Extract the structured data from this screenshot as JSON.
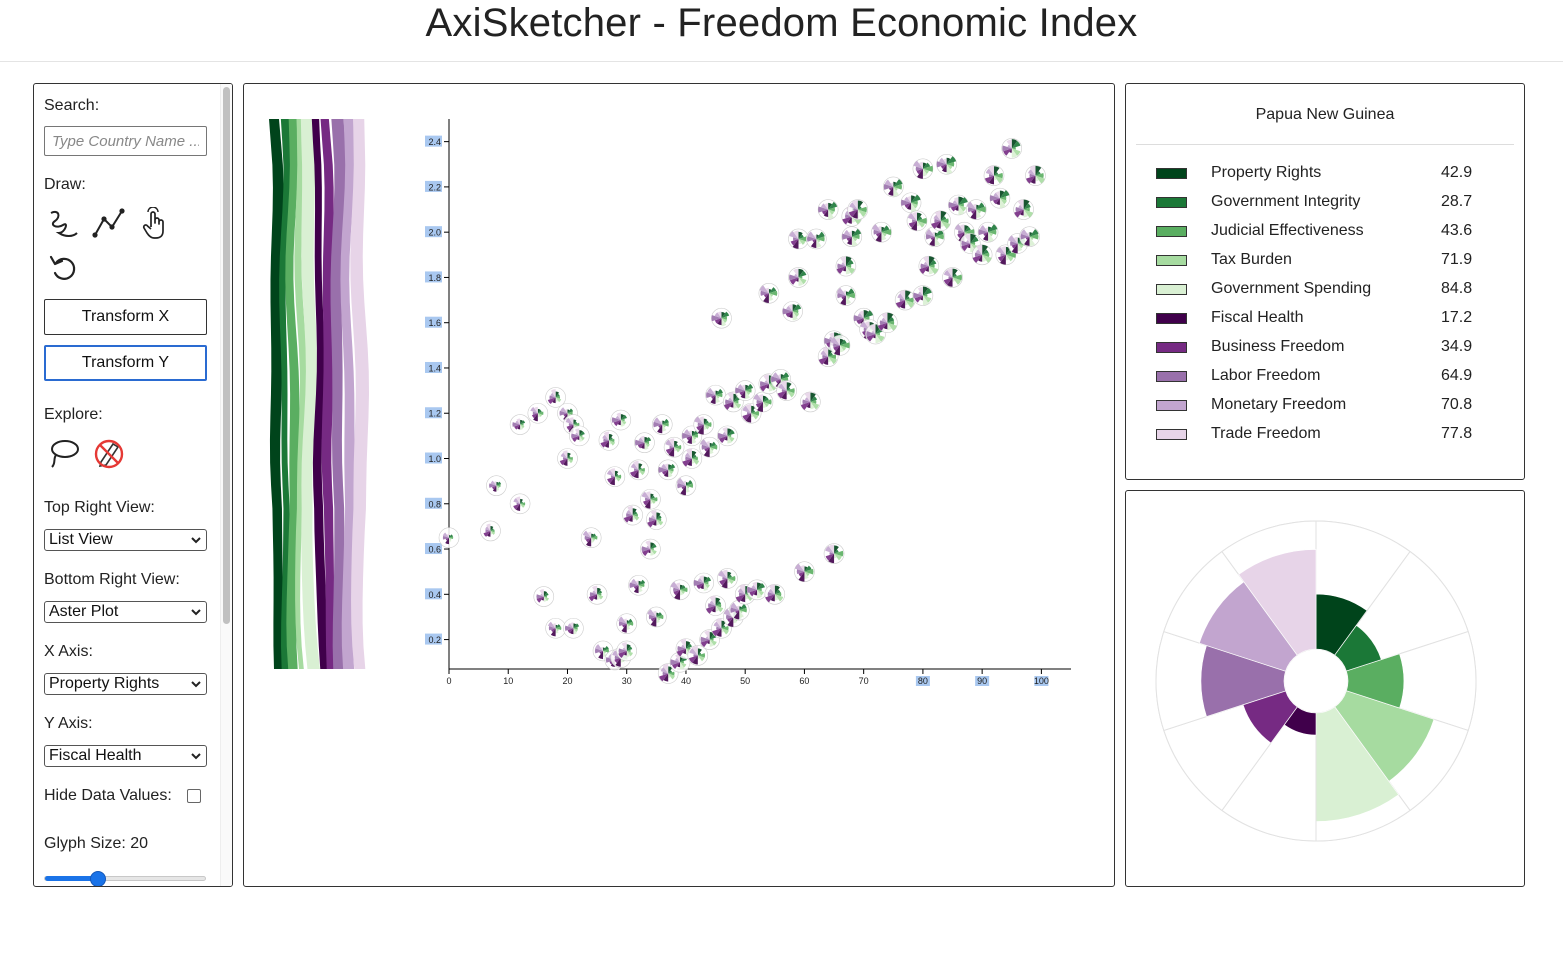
{
  "header": {
    "title": "AxiSketcher - Freedom Economic Index"
  },
  "sidebar": {
    "search_label": "Search:",
    "search_placeholder": "Type Country Name ...",
    "draw_label": "Draw:",
    "draw_tools": [
      "freehand-curve-icon",
      "polyline-icon",
      "pointer-hand-icon",
      "undo-icon"
    ],
    "transform_x": "Transform X",
    "transform_y": "Transform Y",
    "explore_label": "Explore:",
    "explore_tools": [
      "lasso-icon",
      "no-draw-icon"
    ],
    "top_right_view_label": "Top Right View:",
    "top_right_view_value": "List View",
    "bottom_right_view_label": "Bottom Right View:",
    "bottom_right_view_value": "Aster Plot",
    "x_axis_label": "X Axis:",
    "x_axis_value": "Property Rights",
    "y_axis_label": "Y Axis:",
    "y_axis_value": "Fiscal Health",
    "hide_values_label": "Hide Data Values:",
    "hide_values_checked": false,
    "glyph_size_label": "Glyph Size: 20",
    "glyph_size_value": 20,
    "glyph_size_fraction": 0.33
  },
  "colors": {
    "green_dark": "#00441b",
    "green_2": "#1b7837",
    "green_3": "#5aae61",
    "green_4": "#a6dba0",
    "green_5": "#d9f0d3",
    "purple_dark": "#40004b",
    "purple_2": "#762a83",
    "purple_3": "#9970ab",
    "purple_4": "#c2a5cf",
    "purple_5": "#e7d4e8",
    "accent": "#1a73e8"
  },
  "chart_data": {
    "type": "scatter",
    "x_label": "",
    "y_label": "",
    "xlim": [
      0,
      105
    ],
    "ylim": [
      0.07,
      2.5
    ],
    "x_ticks": [
      "0",
      "10",
      "20",
      "30",
      "40",
      "50",
      "60",
      "70",
      "80",
      "90",
      "100"
    ],
    "y_ticks": [
      "0.2",
      "0.4",
      "0.6",
      "0.8",
      "1.0",
      "1.2",
      "1.4",
      "1.6",
      "1.8",
      "2.0",
      "2.2",
      "2.4"
    ],
    "highlighted_x_ticks": [
      "80",
      "90",
      "100"
    ],
    "points": [
      [
        0,
        0.65
      ],
      [
        7,
        0.68
      ],
      [
        8,
        0.88
      ],
      [
        12,
        0.8
      ],
      [
        12,
        1.15
      ],
      [
        15,
        1.2
      ],
      [
        16,
        0.39
      ],
      [
        18,
        0.25
      ],
      [
        18,
        1.27
      ],
      [
        20,
        1.2
      ],
      [
        20,
        1.0
      ],
      [
        21,
        0.25
      ],
      [
        21,
        1.15
      ],
      [
        22,
        1.1
      ],
      [
        24,
        0.65
      ],
      [
        25,
        0.4
      ],
      [
        26,
        0.15
      ],
      [
        27,
        1.08
      ],
      [
        28,
        0.11
      ],
      [
        28,
        0.92
      ],
      [
        29,
        1.17
      ],
      [
        29,
        0.12
      ],
      [
        30,
        0.15
      ],
      [
        30,
        0.27
      ],
      [
        31,
        0.75
      ],
      [
        32,
        0.44
      ],
      [
        32,
        0.95
      ],
      [
        33,
        1.07
      ],
      [
        34,
        0.82
      ],
      [
        34,
        0.6
      ],
      [
        35,
        0.3
      ],
      [
        35,
        0.73
      ],
      [
        36,
        1.15
      ],
      [
        37,
        0.05
      ],
      [
        37,
        0.95
      ],
      [
        38,
        1.05
      ],
      [
        39,
        0.1
      ],
      [
        39,
        0.42
      ],
      [
        40,
        0.16
      ],
      [
        40,
        0.88
      ],
      [
        41,
        1.0
      ],
      [
        41,
        1.1
      ],
      [
        42,
        0.13
      ],
      [
        43,
        0.45
      ],
      [
        43,
        1.15
      ],
      [
        44,
        0.2
      ],
      [
        44,
        1.05
      ],
      [
        45,
        0.35
      ],
      [
        45,
        1.28
      ],
      [
        46,
        0.25
      ],
      [
        46,
        1.62
      ],
      [
        47,
        0.47
      ],
      [
        47,
        1.1
      ],
      [
        48,
        0.3
      ],
      [
        48,
        1.25
      ],
      [
        49,
        0.33
      ],
      [
        50,
        0.4
      ],
      [
        50,
        1.3
      ],
      [
        51,
        1.2
      ],
      [
        52,
        0.42
      ],
      [
        53,
        1.25
      ],
      [
        54,
        1.33
      ],
      [
        54,
        1.73
      ],
      [
        55,
        0.4
      ],
      [
        56,
        1.35
      ],
      [
        57,
        1.3
      ],
      [
        58,
        1.65
      ],
      [
        59,
        1.97
      ],
      [
        59,
        1.8
      ],
      [
        60,
        0.5
      ],
      [
        61,
        1.25
      ],
      [
        62,
        1.97
      ],
      [
        64,
        1.45
      ],
      [
        64,
        2.1
      ],
      [
        65,
        0.58
      ],
      [
        65,
        1.52
      ],
      [
        66,
        1.5
      ],
      [
        67,
        1.85
      ],
      [
        67,
        1.72
      ],
      [
        68,
        2.07
      ],
      [
        68,
        1.98
      ],
      [
        69,
        2.1
      ],
      [
        70,
        1.62
      ],
      [
        71,
        1.57
      ],
      [
        72,
        1.55
      ],
      [
        73,
        2.0
      ],
      [
        74,
        1.6
      ],
      [
        75,
        2.2
      ],
      [
        77,
        1.7
      ],
      [
        78,
        2.13
      ],
      [
        79,
        2.05
      ],
      [
        80,
        1.72
      ],
      [
        80,
        2.28
      ],
      [
        81,
        1.85
      ],
      [
        82,
        1.98
      ],
      [
        83,
        2.05
      ],
      [
        84,
        2.3
      ],
      [
        85,
        1.8
      ],
      [
        86,
        2.12
      ],
      [
        87,
        2.0
      ],
      [
        88,
        1.95
      ],
      [
        89,
        2.1
      ],
      [
        90,
        1.9
      ],
      [
        91,
        2.0
      ],
      [
        92,
        2.25
      ],
      [
        93,
        2.15
      ],
      [
        94,
        1.9
      ],
      [
        95,
        2.37
      ],
      [
        96,
        1.95
      ],
      [
        97,
        2.1
      ],
      [
        98,
        1.98
      ],
      [
        99,
        2.25
      ]
    ]
  },
  "strip_legend": {
    "series_order": [
      "Property Rights",
      "Government Integrity",
      "Judicial Effectiveness",
      "Tax Burden",
      "Government Spending",
      "Fiscal Health",
      "Business Freedom",
      "Labor Freedom",
      "Monetary Freedom",
      "Trade Freedom"
    ]
  },
  "detail": {
    "country": "Papua New Guinea",
    "indicators": [
      {
        "name": "Property Rights",
        "value": "42.9",
        "color": "#00441b"
      },
      {
        "name": "Government Integrity",
        "value": "28.7",
        "color": "#1b7837"
      },
      {
        "name": "Judicial Effectiveness",
        "value": "43.6",
        "color": "#5aae61"
      },
      {
        "name": "Tax Burden",
        "value": "71.9",
        "color": "#a6dba0"
      },
      {
        "name": "Government Spending",
        "value": "84.8",
        "color": "#d9f0d3"
      },
      {
        "name": "Fiscal Health",
        "value": "17.2",
        "color": "#40004b"
      },
      {
        "name": "Business Freedom",
        "value": "34.9",
        "color": "#762a83"
      },
      {
        "name": "Labor Freedom",
        "value": "64.9",
        "color": "#9970ab"
      },
      {
        "name": "Monetary Freedom",
        "value": "70.8",
        "color": "#c2a5cf"
      },
      {
        "name": "Trade Freedom",
        "value": "77.8",
        "color": "#e7d4e8"
      }
    ]
  }
}
